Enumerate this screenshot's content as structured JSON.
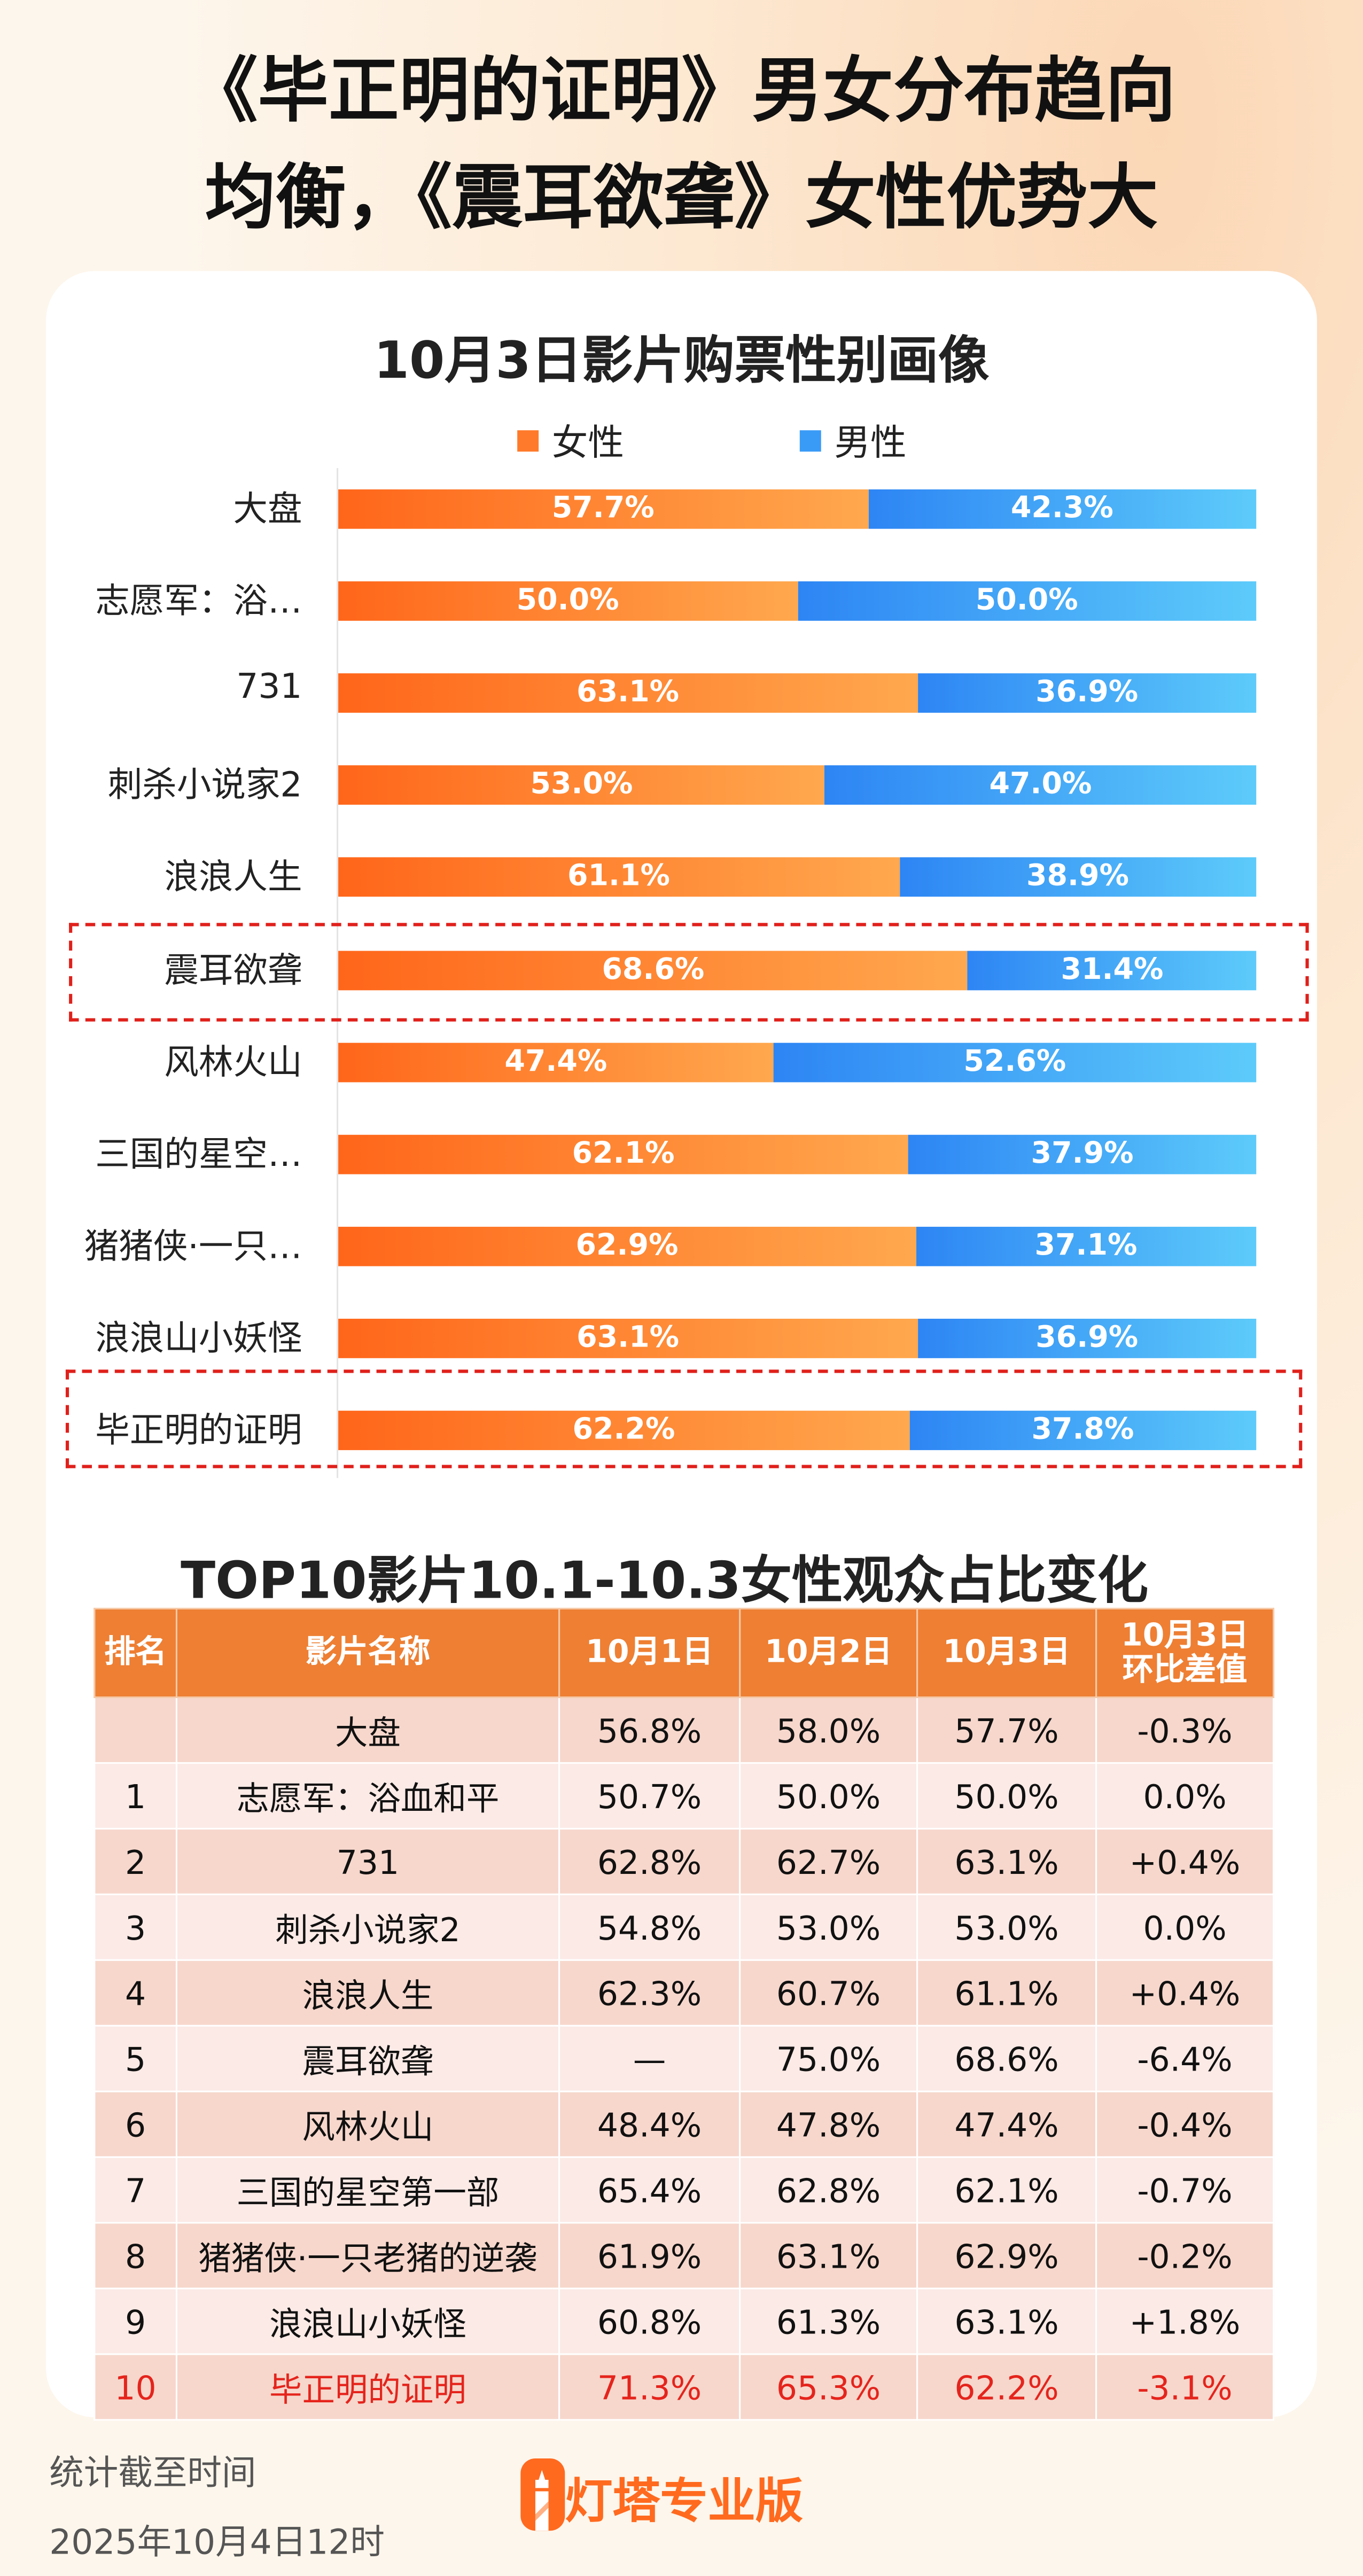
{
  "headline": {
    "line1": "《毕正明的证明》男女分布趋向",
    "line2": "均衡，《震耳欲聋》女性优势大"
  },
  "chart_data": {
    "type": "bar",
    "stacked": true,
    "orientation": "horizontal",
    "title": "10月3日影片购票性别画像",
    "categories": [
      "大盘",
      "志愿军：浴…",
      "731",
      "刺杀小说家2",
      "浪浪人生",
      "震耳欲聋",
      "风林火山",
      "三国的星空…",
      "猪猪侠·一只…",
      "浪浪山小妖怪",
      "毕正明的证明"
    ],
    "series": [
      {
        "name": "女性",
        "color": "#ff7a2a",
        "values": [
          57.7,
          50.0,
          63.1,
          53.0,
          61.1,
          68.6,
          47.4,
          62.1,
          62.9,
          63.1,
          62.2
        ]
      },
      {
        "name": "男性",
        "color": "#3a9bf7",
        "values": [
          42.3,
          50.0,
          36.9,
          47.0,
          38.9,
          31.4,
          52.6,
          37.9,
          37.1,
          36.9,
          37.8
        ]
      }
    ],
    "labels_format": "%",
    "xlim": [
      0,
      100
    ],
    "legend": "top",
    "highlighted": [
      "震耳欲聋",
      "毕正明的证明"
    ]
  },
  "table": {
    "title": "TOP10影片10.1-10.3女性观众占比变化",
    "headers": [
      "排名",
      "影片名称",
      "10月1日",
      "10月2日",
      "10月3日",
      "10月3日\n环比差值"
    ],
    "rows": [
      [
        "",
        "大盘",
        "56.8%",
        "58.0%",
        "57.7%",
        "-0.3%"
      ],
      [
        "1",
        "志愿军：浴血和平",
        "50.7%",
        "50.0%",
        "50.0%",
        "0.0%"
      ],
      [
        "2",
        "731",
        "62.8%",
        "62.7%",
        "63.1%",
        "+0.4%"
      ],
      [
        "3",
        "刺杀小说家2",
        "54.8%",
        "53.0%",
        "53.0%",
        "0.0%"
      ],
      [
        "4",
        "浪浪人生",
        "62.3%",
        "60.7%",
        "61.1%",
        "+0.4%"
      ],
      [
        "5",
        "震耳欲聋",
        "—",
        "75.0%",
        "68.6%",
        "-6.4%"
      ],
      [
        "6",
        "风林火山",
        "48.4%",
        "47.8%",
        "47.4%",
        "-0.4%"
      ],
      [
        "7",
        "三国的星空第一部",
        "65.4%",
        "62.8%",
        "62.1%",
        "-0.7%"
      ],
      [
        "8",
        "猪猪侠·一只老猪的逆袭",
        "61.9%",
        "63.1%",
        "62.9%",
        "-0.2%"
      ],
      [
        "9",
        "浪浪山小妖怪",
        "60.8%",
        "61.3%",
        "63.1%",
        "+1.8%"
      ],
      [
        "10",
        "毕正明的证明",
        "71.3%",
        "65.3%",
        "62.2%",
        "-3.1%"
      ]
    ],
    "highlight_row_color": "#e5241c"
  },
  "footer": {
    "label": "统计截至时间",
    "timestamp": "2025年10月4日12时",
    "brand": "灯塔专业版"
  }
}
